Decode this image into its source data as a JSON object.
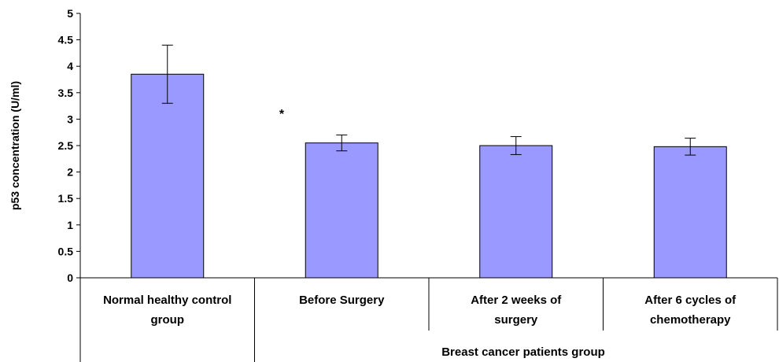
{
  "chart_data": {
    "type": "bar",
    "title": "",
    "xlabel": "",
    "ylabel": "p53 concentration (U/ml)",
    "ylim": [
      0,
      5
    ],
    "yticks": [
      "0",
      "0.5",
      "1",
      "1.5",
      "2",
      "2.5",
      "3",
      "3.5",
      "4",
      "4.5",
      "5"
    ],
    "categories": [
      [
        "Normal healthy control",
        "group"
      ],
      [
        "Before Surgery"
      ],
      [
        "After 2 weeks of",
        "surgery"
      ],
      [
        "After 6 cycles of",
        "chemotherapy"
      ]
    ],
    "values": [
      3.85,
      2.55,
      2.5,
      2.48
    ],
    "errors": [
      0.55,
      0.15,
      0.17,
      0.16
    ],
    "group_label": "Breast cancer patients group",
    "annotation": "*",
    "grid": false,
    "legend": "none",
    "colors": {
      "bar_fill": "#9999ff",
      "bar_stroke": "#000000",
      "axis": "#000000"
    }
  }
}
